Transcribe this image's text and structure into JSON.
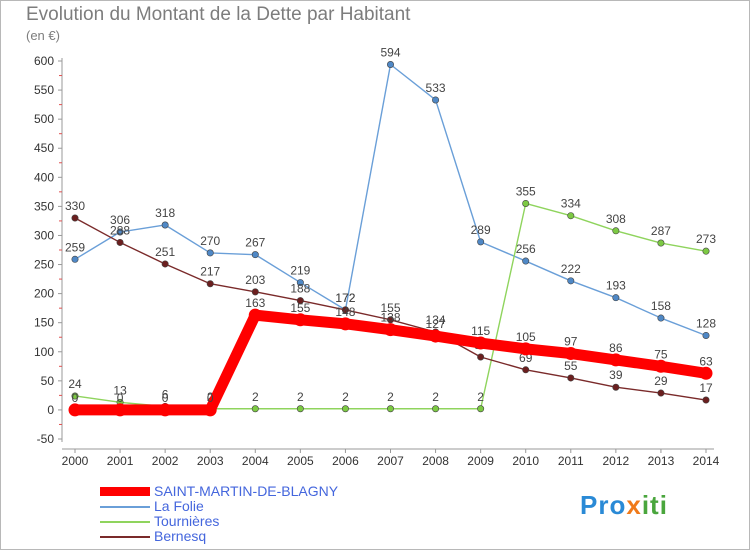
{
  "title": "Evolution du Montant de la Dette par Habitant",
  "unit_label": "(en €)",
  "brand": {
    "p1": "Pro",
    "p2": "x",
    "p3": "iti"
  },
  "chart_data": {
    "type": "line",
    "title": "Evolution du Montant de la Dette par Habitant",
    "ylabel": "(en €)",
    "xlabel": "",
    "x": [
      2000,
      2001,
      2002,
      2003,
      2004,
      2005,
      2006,
      2007,
      2008,
      2009,
      2010,
      2011,
      2012,
      2013,
      2014
    ],
    "ylim": [
      -50,
      600
    ],
    "yticks": [
      -50,
      0,
      50,
      100,
      150,
      200,
      250,
      300,
      350,
      400,
      450,
      500,
      550,
      600
    ],
    "grid": false,
    "legend": "bottom-left",
    "series": [
      {
        "name": "La Folie",
        "color": "#6a9fd8",
        "dot": "#4f88c6",
        "values": [
          259,
          306,
          318,
          270,
          267,
          219,
          172,
          594,
          533,
          289,
          256,
          222,
          193,
          158,
          128
        ],
        "labels": [
          259,
          306,
          318,
          270,
          267,
          219,
          172,
          594,
          533,
          289,
          256,
          222,
          193,
          158,
          128
        ]
      },
      {
        "name": "Tournières",
        "color": "#8fd45d",
        "dot": "#7cc943",
        "values": [
          24,
          13,
          6,
          2,
          2,
          2,
          2,
          2,
          2,
          2,
          355,
          334,
          308,
          287,
          273
        ],
        "labels": [
          24,
          13,
          6,
          2,
          2,
          2,
          2,
          2,
          2,
          2,
          355,
          334,
          308,
          287,
          273
        ]
      },
      {
        "name": "Bernesq",
        "color": "#7a2a2a",
        "dot": "#6b1f1f",
        "values": [
          330,
          288,
          251,
          217,
          203,
          188,
          172,
          155,
          134,
          91,
          69,
          55,
          39,
          29,
          17
        ],
        "labels": [
          330,
          288,
          251,
          217,
          203,
          188,
          172,
          155,
          134,
          91,
          69,
          55,
          39,
          29,
          17
        ]
      },
      {
        "name": "SAINT-MARTIN-DE-BLAGNY",
        "color": "#ff0000",
        "dot": "#ff0000",
        "values": [
          0,
          0,
          0,
          0,
          163,
          155,
          148,
          138,
          127,
          115,
          105,
          97,
          86,
          75,
          63
        ],
        "labels": [
          0,
          0,
          0,
          0,
          163,
          155,
          148,
          138,
          127,
          115,
          105,
          97,
          86,
          75,
          63
        ]
      }
    ],
    "legend_items": [
      "SAINT-MARTIN-DE-BLAGNY",
      "La Folie",
      "Tournières",
      "Bernesq"
    ]
  }
}
